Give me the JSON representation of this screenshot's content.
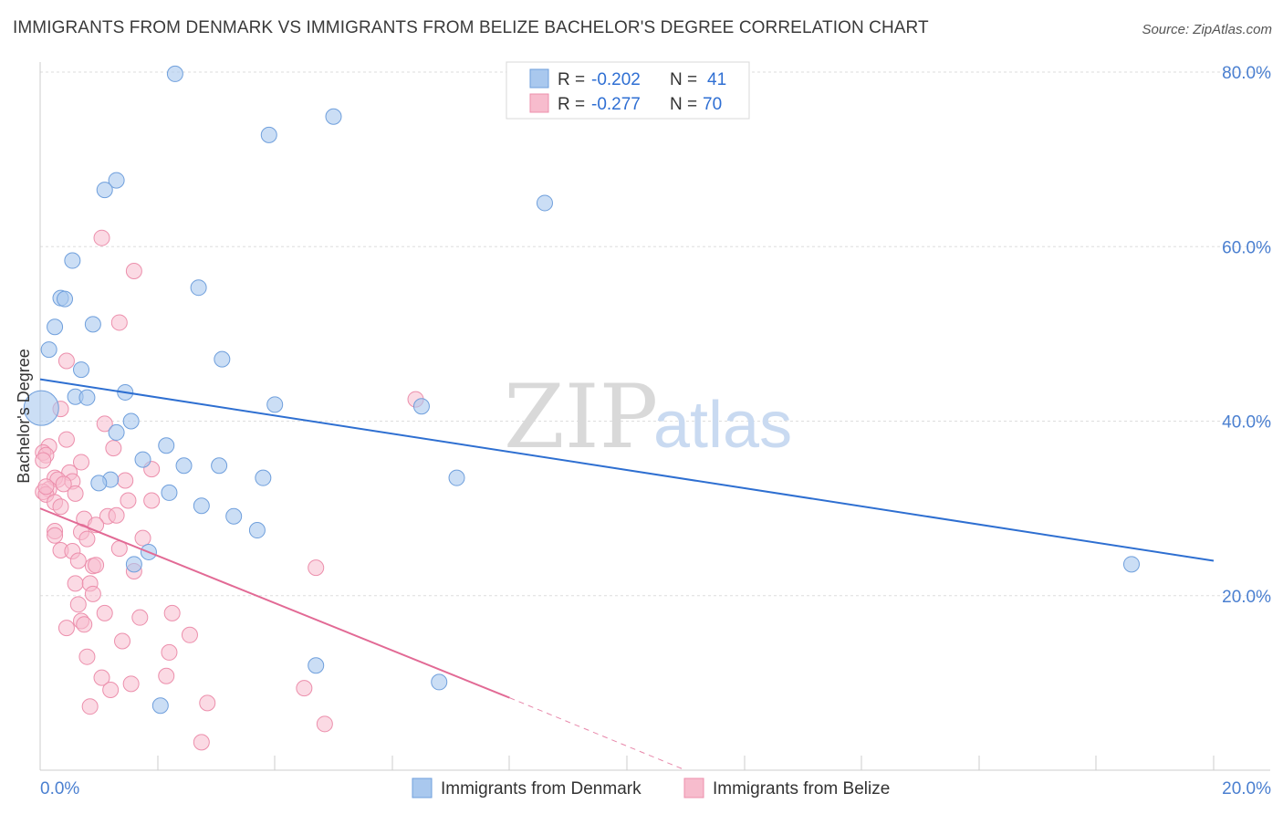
{
  "title": "IMMIGRANTS FROM DENMARK VS IMMIGRANTS FROM BELIZE BACHELOR'S DEGREE CORRELATION CHART",
  "source": "Source: ZipAtlas.com",
  "watermark": {
    "zip": "ZIP",
    "atlas": "atlas"
  },
  "legend": {
    "denmark": {
      "r_label": "R =",
      "r_value": "-0.202",
      "n_label": "N =",
      "n_value": "41"
    },
    "belize": {
      "r_label": "R =",
      "r_value": "-0.277",
      "n_label": "N =",
      "n_value": "70"
    }
  },
  "colors": {
    "denmark_fill": "#a9c8ee",
    "denmark_stroke": "#6f9fdc",
    "denmark_line": "#2e6fd1",
    "belize_fill": "#f7bccd",
    "belize_stroke": "#ec8fac",
    "belize_line": "#e26a95",
    "grid": "#dddddd",
    "tick_text": "#4a7fd0"
  },
  "chart_data": {
    "type": "scatter",
    "title": "IMMIGRANTS FROM DENMARK VS IMMIGRANTS FROM BELIZE BACHELOR'S DEGREE CORRELATION CHART",
    "xlabel": "",
    "ylabel": "Bachelor's Degree",
    "xlim": [
      0,
      20
    ],
    "ylim": [
      0,
      80
    ],
    "x_tick_labels": [
      "0.0%",
      "20.0%"
    ],
    "y_ticks": [
      20,
      40,
      60,
      80
    ],
    "y_tick_labels": [
      "20.0%",
      "40.0%",
      "60.0%",
      "80.0%"
    ],
    "series": [
      {
        "name": "Immigrants from Denmark",
        "r": -0.202,
        "n": 41,
        "trend": {
          "x0": 0,
          "y0": 44.8,
          "x1": 20,
          "y1": 24.0
        },
        "points": [
          {
            "x": 2.3,
            "y": 79.8
          },
          {
            "x": 5.0,
            "y": 74.9
          },
          {
            "x": 3.9,
            "y": 72.8
          },
          {
            "x": 1.3,
            "y": 67.6
          },
          {
            "x": 1.1,
            "y": 66.5
          },
          {
            "x": 8.6,
            "y": 65.0
          },
          {
            "x": 0.55,
            "y": 58.4
          },
          {
            "x": 2.7,
            "y": 55.3
          },
          {
            "x": 0.35,
            "y": 54.1
          },
          {
            "x": 0.42,
            "y": 54.0
          },
          {
            "x": 0.25,
            "y": 50.8
          },
          {
            "x": 0.9,
            "y": 51.1
          },
          {
            "x": 0.15,
            "y": 48.2
          },
          {
            "x": 3.1,
            "y": 47.1
          },
          {
            "x": 0.7,
            "y": 45.9
          },
          {
            "x": 1.45,
            "y": 43.3
          },
          {
            "x": 0.6,
            "y": 42.8
          },
          {
            "x": 0.8,
            "y": 42.7
          },
          {
            "x": 4.0,
            "y": 41.9
          },
          {
            "x": 6.5,
            "y": 41.7
          },
          {
            "x": 0.02,
            "y": 41.5
          },
          {
            "x": 1.55,
            "y": 40.0
          },
          {
            "x": 1.3,
            "y": 38.7
          },
          {
            "x": 2.15,
            "y": 37.2
          },
          {
            "x": 1.75,
            "y": 35.6
          },
          {
            "x": 2.45,
            "y": 34.9
          },
          {
            "x": 3.05,
            "y": 34.9
          },
          {
            "x": 1.2,
            "y": 33.3
          },
          {
            "x": 1.0,
            "y": 32.9
          },
          {
            "x": 3.8,
            "y": 33.5
          },
          {
            "x": 7.1,
            "y": 33.5
          },
          {
            "x": 2.2,
            "y": 31.8
          },
          {
            "x": 2.75,
            "y": 30.3
          },
          {
            "x": 3.3,
            "y": 29.1
          },
          {
            "x": 3.7,
            "y": 27.5
          },
          {
            "x": 1.85,
            "y": 25.0
          },
          {
            "x": 1.6,
            "y": 23.6
          },
          {
            "x": 18.6,
            "y": 23.6
          },
          {
            "x": 4.7,
            "y": 12.0
          },
          {
            "x": 6.8,
            "y": 10.1
          },
          {
            "x": 2.05,
            "y": 7.4
          }
        ]
      },
      {
        "name": "Immigrants from Belize",
        "r": -0.277,
        "n": 70,
        "trend": {
          "x0": 0,
          "y0": 30.0,
          "x1": 8.0,
          "y1": 8.3
        },
        "trend_dashed": {
          "x0": 8.0,
          "y0": 8.3,
          "x1": 11.0,
          "y1": 0.0
        },
        "points": [
          {
            "x": 1.05,
            "y": 61.0
          },
          {
            "x": 1.6,
            "y": 57.2
          },
          {
            "x": 1.35,
            "y": 51.3
          },
          {
            "x": 0.45,
            "y": 46.9
          },
          {
            "x": 6.4,
            "y": 42.5
          },
          {
            "x": 0.35,
            "y": 41.4
          },
          {
            "x": 1.1,
            "y": 39.7
          },
          {
            "x": 0.45,
            "y": 37.9
          },
          {
            "x": 0.15,
            "y": 37.1
          },
          {
            "x": 1.25,
            "y": 36.9
          },
          {
            "x": 0.05,
            "y": 36.4
          },
          {
            "x": 0.1,
            "y": 36.1
          },
          {
            "x": 0.05,
            "y": 35.5
          },
          {
            "x": 0.7,
            "y": 35.3
          },
          {
            "x": 1.9,
            "y": 34.5
          },
          {
            "x": 0.5,
            "y": 34.1
          },
          {
            "x": 0.25,
            "y": 33.5
          },
          {
            "x": 0.3,
            "y": 33.3
          },
          {
            "x": 0.55,
            "y": 33.1
          },
          {
            "x": 1.45,
            "y": 33.2
          },
          {
            "x": 0.4,
            "y": 32.8
          },
          {
            "x": 0.15,
            "y": 32.2
          },
          {
            "x": 0.05,
            "y": 31.9
          },
          {
            "x": 0.1,
            "y": 31.6
          },
          {
            "x": 0.6,
            "y": 31.7
          },
          {
            "x": 1.5,
            "y": 30.9
          },
          {
            "x": 1.9,
            "y": 30.9
          },
          {
            "x": 0.25,
            "y": 30.7
          },
          {
            "x": 0.35,
            "y": 30.2
          },
          {
            "x": 1.15,
            "y": 29.1
          },
          {
            "x": 1.3,
            "y": 29.2
          },
          {
            "x": 0.75,
            "y": 28.8
          },
          {
            "x": 0.95,
            "y": 28.1
          },
          {
            "x": 0.7,
            "y": 27.3
          },
          {
            "x": 0.25,
            "y": 27.4
          },
          {
            "x": 0.25,
            "y": 26.9
          },
          {
            "x": 1.75,
            "y": 26.6
          },
          {
            "x": 0.8,
            "y": 26.5
          },
          {
            "x": 0.35,
            "y": 25.2
          },
          {
            "x": 0.55,
            "y": 25.1
          },
          {
            "x": 1.35,
            "y": 25.4
          },
          {
            "x": 0.65,
            "y": 24.0
          },
          {
            "x": 0.9,
            "y": 23.4
          },
          {
            "x": 0.95,
            "y": 23.5
          },
          {
            "x": 1.6,
            "y": 22.8
          },
          {
            "x": 4.7,
            "y": 23.2
          },
          {
            "x": 0.6,
            "y": 21.4
          },
          {
            "x": 0.85,
            "y": 21.4
          },
          {
            "x": 0.9,
            "y": 20.2
          },
          {
            "x": 0.65,
            "y": 19.0
          },
          {
            "x": 1.1,
            "y": 18.0
          },
          {
            "x": 2.25,
            "y": 18.0
          },
          {
            "x": 1.7,
            "y": 17.5
          },
          {
            "x": 0.7,
            "y": 17.1
          },
          {
            "x": 0.75,
            "y": 16.7
          },
          {
            "x": 0.45,
            "y": 16.3
          },
          {
            "x": 2.55,
            "y": 15.5
          },
          {
            "x": 1.4,
            "y": 14.8
          },
          {
            "x": 2.2,
            "y": 13.5
          },
          {
            "x": 0.8,
            "y": 13.0
          },
          {
            "x": 2.15,
            "y": 10.8
          },
          {
            "x": 1.05,
            "y": 10.6
          },
          {
            "x": 1.55,
            "y": 9.9
          },
          {
            "x": 4.5,
            "y": 9.4
          },
          {
            "x": 1.2,
            "y": 9.2
          },
          {
            "x": 2.85,
            "y": 7.7
          },
          {
            "x": 0.85,
            "y": 7.3
          },
          {
            "x": 4.85,
            "y": 5.3
          },
          {
            "x": 2.75,
            "y": 3.2
          },
          {
            "x": 0.1,
            "y": 32.5
          }
        ]
      }
    ],
    "special_points": [
      {
        "series": "Immigrants from Denmark",
        "x": 0.0,
        "y": 41.5,
        "size": "large"
      }
    ]
  },
  "bottom_legend": {
    "denmark_label": "Immigrants from Denmark",
    "belize_label": "Immigrants from Belize"
  }
}
